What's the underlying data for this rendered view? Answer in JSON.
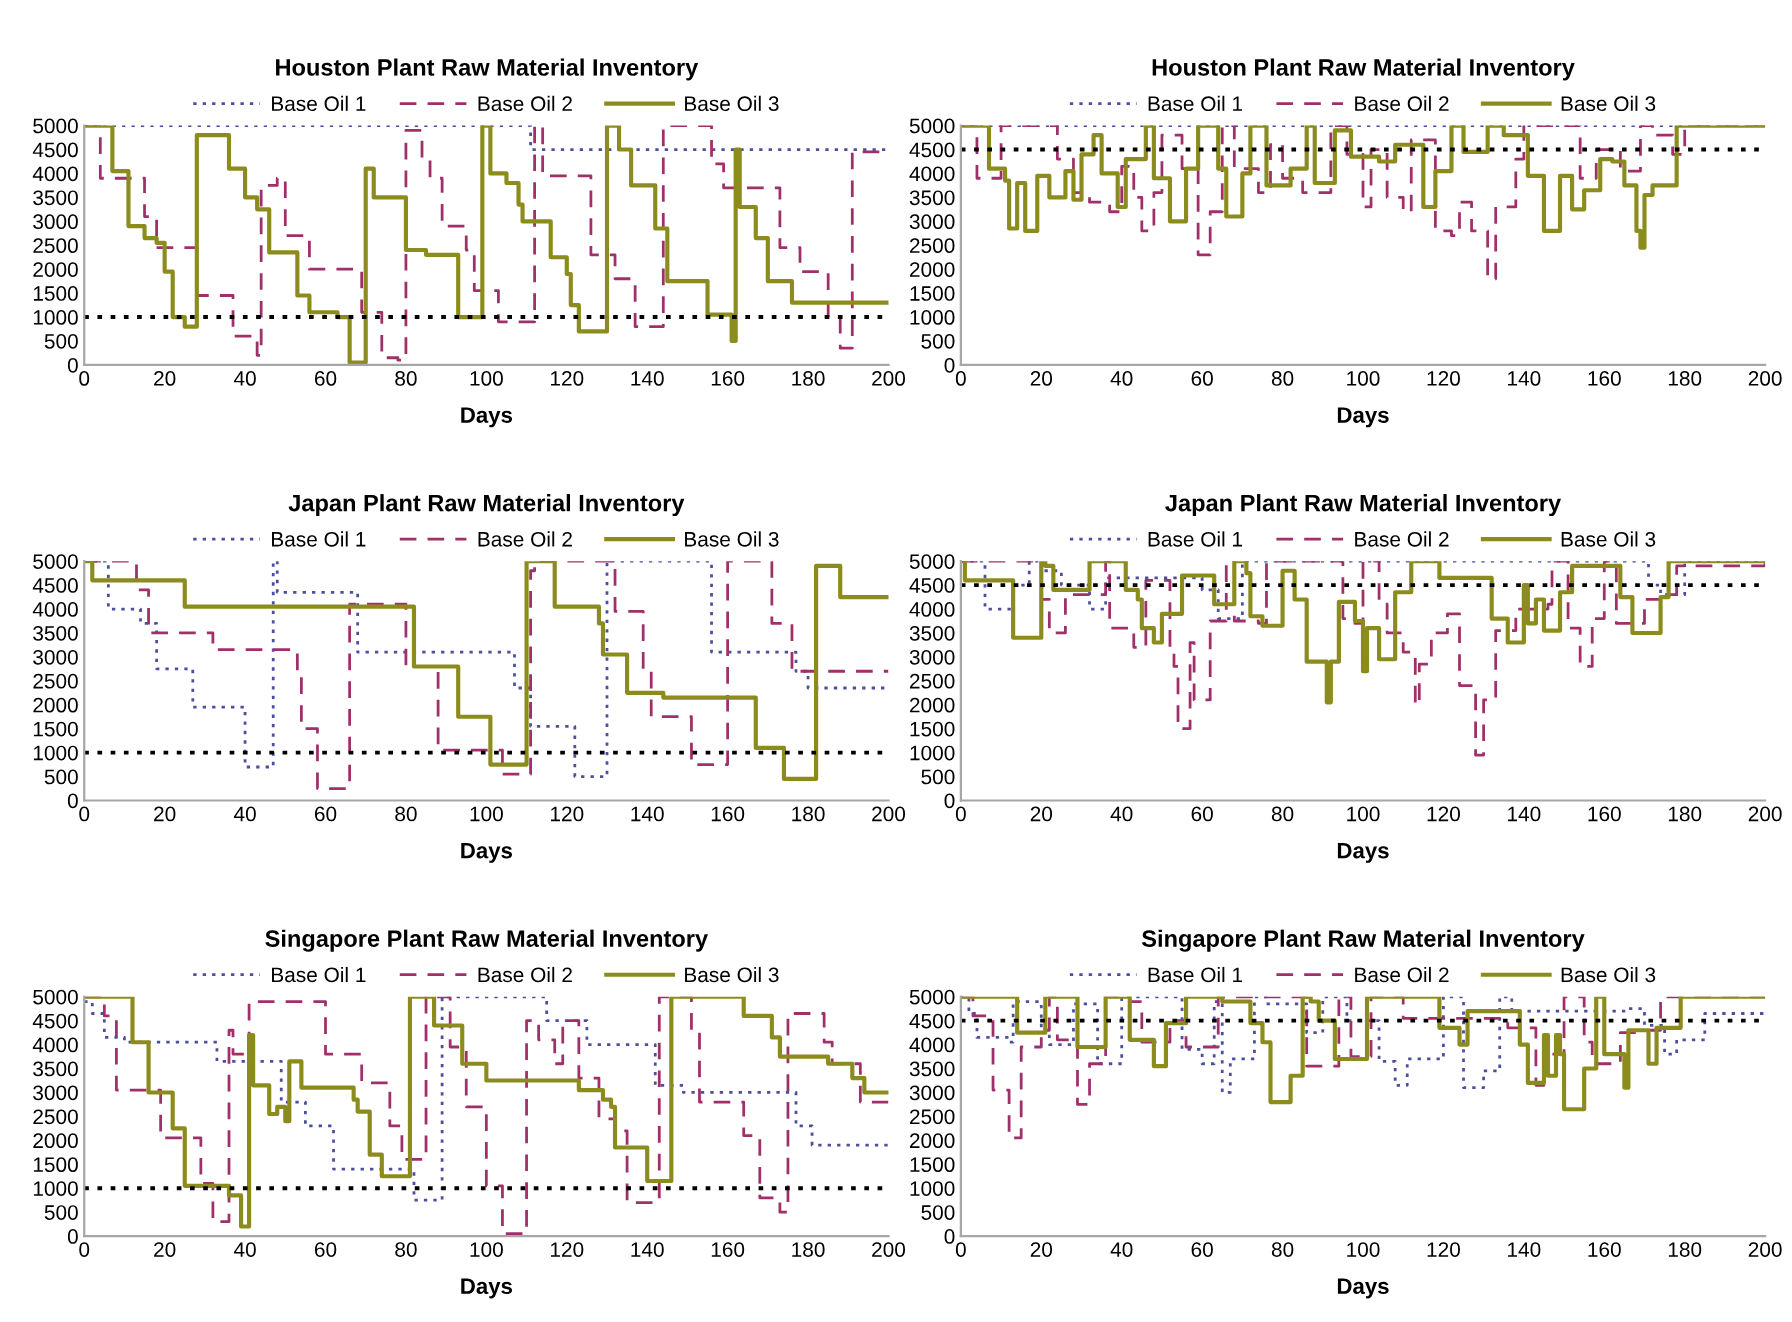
{
  "chart_data": [
    {
      "type": "step",
      "title": "Houston Plant Raw Material Inventory",
      "xlabel": "Days",
      "legend": "top",
      "xlim": [
        0,
        200
      ],
      "ylim": [
        0,
        5000
      ],
      "xticks": [
        0,
        20,
        40,
        60,
        80,
        100,
        120,
        140,
        160,
        180,
        200
      ],
      "yticks": [
        0,
        500,
        1000,
        1500,
        2000,
        2500,
        3000,
        3500,
        4000,
        4500,
        5000
      ],
      "ref_lines": [
        {
          "axis": "y",
          "value": 1000,
          "color": "#000000",
          "line_style": "dotted"
        }
      ],
      "series": [
        {
          "name": "Base Oil 1",
          "color": "#4b4f9e",
          "line_style": "dotted",
          "x": [
            0,
            111,
            200
          ],
          "values": [
            5000,
            4500,
            4500
          ]
        },
        {
          "name": "Base Oil 2",
          "color": "#a0306a",
          "line_style": "dashed",
          "x": [
            0,
            4,
            15,
            18,
            28,
            37,
            43,
            44,
            48,
            50,
            56,
            69,
            74,
            78,
            80,
            84,
            86,
            89,
            95,
            97,
            103,
            112,
            114,
            126,
            132,
            137,
            144,
            156,
            159,
            173,
            178,
            185,
            188,
            191,
            200
          ],
          "values": [
            5000,
            3900,
            3100,
            2450,
            1450,
            600,
            200,
            3750,
            3900,
            2700,
            2000,
            1100,
            150,
            100,
            4900,
            4300,
            3900,
            2900,
            2400,
            1550,
            900,
            5000,
            3950,
            2300,
            1800,
            800,
            5000,
            4200,
            3700,
            2450,
            1950,
            1000,
            350,
            4450,
            4450
          ]
        },
        {
          "name": "Base Oil 3",
          "color": "#8c8c1e",
          "line_style": "solid",
          "x": [
            0,
            7,
            11,
            15,
            18,
            20,
            22,
            25,
            28,
            36,
            40,
            43,
            46,
            53,
            56,
            63,
            66,
            70,
            72,
            80,
            85,
            93,
            99,
            101,
            105,
            108,
            109,
            116,
            120,
            121,
            123,
            130,
            133,
            136,
            142,
            145,
            155,
            161,
            162,
            163,
            167,
            170,
            176,
            200
          ],
          "values": [
            5000,
            4050,
            2900,
            2650,
            2550,
            1950,
            1000,
            800,
            4800,
            4100,
            3500,
            3250,
            2350,
            1450,
            1100,
            1000,
            50,
            4100,
            3500,
            2400,
            2300,
            1000,
            5000,
            4000,
            3800,
            3350,
            3000,
            2250,
            1900,
            1250,
            700,
            5000,
            4500,
            3750,
            2850,
            1750,
            1050,
            500,
            4500,
            3300,
            2650,
            1750,
            1300,
            1300
          ]
        }
      ]
    },
    {
      "type": "step",
      "title": "Houston Plant Raw Material Inventory",
      "xlabel": "Days",
      "legend": "top",
      "xlim": [
        0,
        200
      ],
      "ylim": [
        0,
        5000
      ],
      "xticks": [
        0,
        20,
        40,
        60,
        80,
        100,
        120,
        140,
        160,
        180,
        200
      ],
      "yticks": [
        0,
        500,
        1000,
        1500,
        2000,
        2500,
        3000,
        3500,
        4000,
        4500,
        5000
      ],
      "ref_lines": [
        {
          "axis": "y",
          "value": 4500,
          "color": "#000000",
          "line_style": "dotted"
        }
      ],
      "series": [
        {
          "name": "Base Oil 1",
          "color": "#4b4f9e",
          "line_style": "dotted",
          "x": [
            0,
            200
          ],
          "values": [
            5000,
            5000
          ]
        },
        {
          "name": "Base Oil 2",
          "color": "#a0306a",
          "line_style": "dashed",
          "x": [
            0,
            4,
            10,
            24,
            28,
            32,
            37,
            40,
            43,
            45,
            48,
            50,
            55,
            59,
            62,
            65,
            68,
            74,
            77,
            80,
            85,
            92,
            96,
            100,
            102,
            106,
            110,
            112,
            118,
            122,
            124,
            127,
            131,
            133,
            138,
            140,
            154,
            158,
            164,
            169,
            172,
            177,
            180,
            200
          ],
          "values": [
            5000,
            3900,
            5000,
            4300,
            3600,
            3400,
            3200,
            4150,
            3500,
            2800,
            3600,
            4800,
            4100,
            2300,
            3200,
            5000,
            4100,
            3600,
            4600,
            3900,
            3600,
            5000,
            4400,
            3300,
            4500,
            3500,
            3200,
            4700,
            2800,
            2700,
            3400,
            2800,
            1800,
            3300,
            4300,
            5000,
            3900,
            4500,
            4050,
            5000,
            4800,
            4400,
            5000,
            5000
          ]
        },
        {
          "name": "Base Oil 3",
          "color": "#8c8c1e",
          "line_style": "solid",
          "x": [
            0,
            7,
            11,
            12,
            14,
            16,
            19,
            22,
            26,
            28,
            30,
            33,
            35,
            39,
            41,
            46,
            48,
            52,
            56,
            59,
            64,
            66,
            70,
            72,
            76,
            82,
            86,
            88,
            93,
            97,
            104,
            108,
            115,
            118,
            122,
            125,
            131,
            135,
            141,
            145,
            149,
            152,
            155,
            159,
            162,
            165,
            168,
            169,
            170,
            172,
            178,
            200
          ],
          "values": [
            5000,
            4100,
            3850,
            2850,
            3800,
            2800,
            3950,
            3500,
            4050,
            3450,
            4400,
            4800,
            4000,
            3300,
            4300,
            5000,
            3900,
            3000,
            4100,
            5000,
            4100,
            3100,
            4000,
            5000,
            3750,
            4100,
            5000,
            3800,
            4900,
            4350,
            4250,
            4600,
            3300,
            4050,
            5000,
            4450,
            5000,
            4800,
            3950,
            2800,
            3950,
            3250,
            3650,
            4300,
            4250,
            3750,
            2800,
            2450,
            3550,
            3750,
            5000,
            5000
          ]
        }
      ]
    },
    {
      "type": "step",
      "title": "Japan Plant Raw Material Inventory",
      "xlabel": "Days",
      "legend": "top",
      "xlim": [
        0,
        200
      ],
      "ylim": [
        0,
        5000
      ],
      "xticks": [
        0,
        20,
        40,
        60,
        80,
        100,
        120,
        140,
        160,
        180,
        200
      ],
      "yticks": [
        0,
        500,
        1000,
        1500,
        2000,
        2500,
        3000,
        3500,
        4000,
        4500,
        5000
      ],
      "ref_lines": [
        {
          "axis": "y",
          "value": 1000,
          "color": "#000000",
          "line_style": "dotted"
        }
      ],
      "series": [
        {
          "name": "Base Oil 1",
          "color": "#4b4f9e",
          "line_style": "dotted",
          "x": [
            0,
            6,
            14,
            18,
            27,
            40,
            47,
            48,
            68,
            107,
            111,
            122,
            130,
            156,
            177,
            180,
            200
          ],
          "values": [
            5000,
            4000,
            3700,
            2750,
            1950,
            700,
            5000,
            4350,
            3100,
            2350,
            1550,
            500,
            5000,
            3100,
            2700,
            2350,
            2350
          ]
        },
        {
          "name": "Base Oil 2",
          "color": "#a0306a",
          "line_style": "dashed",
          "x": [
            0,
            13,
            16,
            32,
            53,
            54,
            58,
            66,
            80,
            88,
            104,
            111,
            112,
            132,
            139,
            141,
            151,
            160,
            171,
            176,
            200
          ],
          "values": [
            5000,
            4400,
            3500,
            3150,
            2700,
            1500,
            250,
            4100,
            2800,
            1050,
            550,
            4800,
            5000,
            3950,
            2700,
            1750,
            750,
            5000,
            3700,
            2700,
            2700
          ]
        },
        {
          "name": "Base Oil 3",
          "color": "#8c8c1e",
          "line_style": "solid",
          "x": [
            0,
            2,
            25,
            82,
            93,
            101,
            110,
            117,
            128,
            129,
            135,
            144,
            167,
            174,
            182,
            188,
            200
          ],
          "values": [
            5000,
            4600,
            4050,
            2800,
            1750,
            750,
            5000,
            4050,
            3700,
            3050,
            2250,
            2150,
            1100,
            450,
            4900,
            4250,
            4250
          ]
        }
      ]
    },
    {
      "type": "step",
      "title": "Japan Plant Raw Material Inventory",
      "xlabel": "Days",
      "legend": "top",
      "xlim": [
        0,
        200
      ],
      "ylim": [
        0,
        5000
      ],
      "xticks": [
        0,
        20,
        40,
        60,
        80,
        100,
        120,
        140,
        160,
        180,
        200
      ],
      "yticks": [
        0,
        500,
        1000,
        1500,
        2000,
        2500,
        3000,
        3500,
        4000,
        4500,
        5000
      ],
      "ref_lines": [
        {
          "axis": "y",
          "value": 4500,
          "color": "#000000",
          "line_style": "dotted"
        }
      ],
      "series": [
        {
          "name": "Base Oil 1",
          "color": "#4b4f9e",
          "line_style": "dotted",
          "x": [
            0,
            6,
            13,
            17,
            20,
            25,
            32,
            36,
            60,
            64,
            70,
            171,
            174,
            180,
            200
          ],
          "values": [
            5000,
            4000,
            4500,
            5000,
            4800,
            4500,
            4000,
            4650,
            4400,
            3800,
            5000,
            4500,
            4300,
            5000,
            5000
          ]
        },
        {
          "name": "Base Oil 2",
          "color": "#a0306a",
          "line_style": "dashed",
          "x": [
            0,
            20,
            22,
            26,
            36,
            37,
            43,
            46,
            52,
            53,
            54,
            57,
            58,
            62,
            66,
            68,
            74,
            76,
            95,
            98,
            100,
            104,
            106,
            110,
            113,
            114,
            117,
            121,
            124,
            128,
            130,
            133,
            138,
            146,
            147,
            151,
            154,
            157,
            160,
            163,
            170,
            174,
            178,
            200
          ],
          "values": [
            5000,
            4200,
            3500,
            4300,
            5000,
            3600,
            3200,
            4600,
            3200,
            2800,
            1500,
            3300,
            2100,
            3750,
            5000,
            3750,
            3700,
            5000,
            3800,
            3700,
            5000,
            4100,
            3500,
            3100,
            2000,
            2850,
            3500,
            3900,
            2400,
            950,
            2100,
            3550,
            4000,
            4100,
            5000,
            3600,
            2800,
            3800,
            5000,
            3700,
            4200,
            4300,
            4900,
            5000
          ]
        },
        {
          "name": "Base Oil 3",
          "color": "#8c8c1e",
          "line_style": "solid",
          "x": [
            0,
            1,
            13,
            20,
            21,
            23,
            32,
            41,
            44,
            45,
            48,
            50,
            55,
            63,
            68,
            71,
            72,
            75,
            80,
            83,
            86,
            91,
            92,
            94,
            98,
            100,
            101,
            104,
            108,
            112,
            119,
            132,
            136,
            140,
            141,
            143,
            145,
            149,
            152,
            164,
            167,
            174,
            176,
            200
          ],
          "values": [
            5000,
            4600,
            3400,
            5000,
            4900,
            4400,
            5000,
            4400,
            4200,
            3600,
            3300,
            3900,
            4700,
            4100,
            5000,
            4750,
            3850,
            3650,
            4800,
            4200,
            2900,
            2050,
            2900,
            4150,
            3750,
            2700,
            3600,
            2950,
            4350,
            5000,
            4650,
            3800,
            3300,
            4500,
            3700,
            4200,
            3550,
            4350,
            4900,
            4250,
            3500,
            4250,
            5000,
            5000
          ]
        }
      ]
    },
    {
      "type": "step",
      "title": "Singapore Plant Raw Material Inventory",
      "xlabel": "Days",
      "legend": "top",
      "xlim": [
        0,
        200
      ],
      "ylim": [
        0,
        5000
      ],
      "xticks": [
        0,
        20,
        40,
        60,
        80,
        100,
        120,
        140,
        160,
        180,
        200
      ],
      "yticks": [
        0,
        500,
        1000,
        1500,
        2000,
        2500,
        3000,
        3500,
        4000,
        4500,
        5000
      ],
      "ref_lines": [
        {
          "axis": "y",
          "value": 1000,
          "color": "#000000",
          "line_style": "dotted"
        }
      ],
      "series": [
        {
          "name": "Base Oil 1",
          "color": "#4b4f9e",
          "line_style": "dotted",
          "x": [
            0,
            2,
            5,
            10,
            33,
            49,
            55,
            62,
            82,
            89,
            115,
            125,
            142,
            149,
            177,
            181,
            200
          ],
          "values": [
            4900,
            4650,
            4150,
            4050,
            3650,
            2800,
            2300,
            1400,
            750,
            5000,
            4500,
            4000,
            3150,
            3000,
            2300,
            1900,
            1900
          ]
        },
        {
          "name": "Base Oil 2",
          "color": "#a0306a",
          "line_style": "dashed",
          "x": [
            0,
            5,
            8,
            19,
            29,
            32,
            36,
            37,
            41,
            60,
            69,
            76,
            79,
            85,
            91,
            95,
            100,
            104,
            110,
            113,
            117,
            119,
            123,
            128,
            132,
            135,
            143,
            151,
            153,
            164,
            168,
            173,
            175,
            184,
            186,
            193,
            200
          ],
          "values": [
            5000,
            4600,
            3050,
            2050,
            1100,
            300,
            4300,
            3800,
            4900,
            3800,
            3200,
            2300,
            1600,
            5000,
            3950,
            2700,
            1050,
            50,
            4500,
            4100,
            3600,
            4500,
            3300,
            2450,
            2200,
            700,
            5000,
            4300,
            2800,
            2100,
            800,
            500,
            4650,
            4050,
            3600,
            2800,
            2800
          ]
        },
        {
          "name": "Base Oil 3",
          "color": "#8c8c1e",
          "line_style": "solid",
          "x": [
            0,
            12,
            16,
            22,
            25,
            36,
            39,
            41,
            42,
            46,
            48,
            50,
            51,
            54,
            67,
            68,
            71,
            74,
            81,
            87,
            94,
            100,
            123,
            129,
            131,
            132,
            140,
            146,
            164,
            171,
            173,
            185,
            191,
            194,
            200
          ],
          "values": [
            5000,
            4050,
            3000,
            2250,
            1050,
            850,
            200,
            4200,
            3150,
            2550,
            2700,
            2400,
            3650,
            3100,
            2850,
            2600,
            1700,
            1250,
            5000,
            4400,
            3600,
            3250,
            3050,
            2850,
            2700,
            1850,
            1150,
            5000,
            4600,
            4150,
            3750,
            3600,
            3300,
            3000,
            3000
          ]
        }
      ]
    },
    {
      "type": "step",
      "title": "Singapore Plant Raw Material Inventory",
      "xlabel": "Days",
      "legend": "top",
      "xlim": [
        0,
        200
      ],
      "ylim": [
        0,
        5000
      ],
      "xticks": [
        0,
        20,
        40,
        60,
        80,
        100,
        120,
        140,
        160,
        180,
        200
      ],
      "yticks": [
        0,
        500,
        1000,
        1500,
        2000,
        2500,
        3000,
        3500,
        4000,
        4500,
        5000
      ],
      "ref_lines": [
        {
          "axis": "y",
          "value": 4500,
          "color": "#000000",
          "line_style": "dotted"
        }
      ],
      "series": [
        {
          "name": "Base Oil 1",
          "color": "#4b4f9e",
          "line_style": "dotted",
          "x": [
            0,
            2,
            4,
            12,
            13,
            20,
            22,
            28,
            34,
            40,
            55,
            60,
            63,
            65,
            67,
            73,
            76,
            86,
            90,
            96,
            104,
            108,
            111,
            120,
            125,
            130,
            134,
            137,
            166,
            170,
            175,
            178,
            185,
            200
          ],
          "values": [
            5000,
            4650,
            4150,
            4050,
            4900,
            4300,
            4000,
            4850,
            3600,
            5000,
            3900,
            3600,
            4900,
            3000,
            3700,
            5000,
            4850,
            4250,
            5000,
            4500,
            3650,
            3150,
            3700,
            5000,
            3100,
            3450,
            5000,
            4700,
            4750,
            4400,
            3800,
            4100,
            4650,
            4650
          ]
        },
        {
          "name": "Base Oil 2",
          "color": "#a0306a",
          "line_style": "dashed",
          "x": [
            0,
            3,
            8,
            12,
            15,
            20,
            22,
            24,
            29,
            32,
            36,
            42,
            45,
            52,
            56,
            64,
            86,
            94,
            97,
            102,
            110,
            136,
            143,
            145,
            150,
            155,
            157,
            164,
            171,
            174,
            200
          ],
          "values": [
            5000,
            4600,
            3050,
            2050,
            3950,
            4300,
            5000,
            4100,
            2750,
            3600,
            5000,
            4900,
            4050,
            4500,
            3950,
            5000,
            3550,
            5000,
            3750,
            5000,
            4550,
            4350,
            3150,
            3800,
            5000,
            4050,
            3600,
            4250,
            4300,
            5000,
            5000
          ]
        },
        {
          "name": "Base Oil 3",
          "color": "#8c8c1e",
          "line_style": "solid",
          "x": [
            0,
            14,
            21,
            29,
            36,
            42,
            48,
            51,
            56,
            65,
            72,
            75,
            77,
            82,
            85,
            87,
            89,
            93,
            101,
            119,
            124,
            126,
            139,
            141,
            145,
            146,
            148,
            149,
            150,
            155,
            158,
            160,
            165,
            166,
            171,
            173,
            179,
            200
          ],
          "values": [
            5000,
            4250,
            5000,
            3950,
            5000,
            4100,
            3550,
            4450,
            5000,
            4900,
            4450,
            4050,
            2800,
            3350,
            5000,
            4900,
            4500,
            3700,
            5000,
            4350,
            4000,
            4700,
            4000,
            3200,
            4200,
            3350,
            4200,
            3800,
            2650,
            3500,
            5000,
            3800,
            3100,
            4300,
            3600,
            4350,
            5000,
            5000
          ]
        }
      ]
    }
  ]
}
